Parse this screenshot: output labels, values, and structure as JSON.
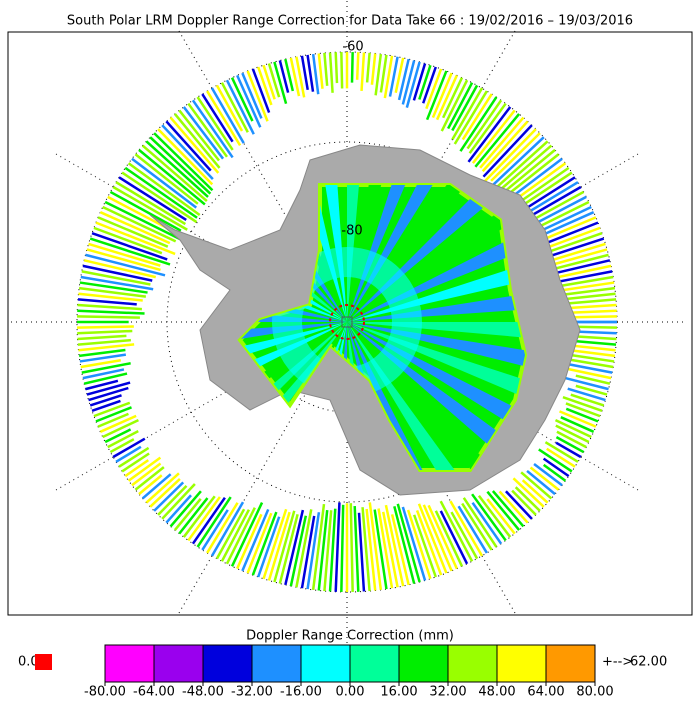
{
  "title": "South Polar LRM Doppler Range Correction for Data Take 66 : 19/02/2016 – 19/03/2016",
  "map": {
    "lat_labels": [
      "-60",
      "-80"
    ]
  },
  "colorbar": {
    "title": "Doppler Range Correction (mm)",
    "colors": [
      "#ff00ff",
      "#9a00ee",
      "#0000dd",
      "#1e90ff",
      "#00ffff",
      "#00ff99",
      "#00ee00",
      "#99ff00",
      "#ffff00",
      "#ff9900"
    ],
    "tick_labels": [
      "-80.00",
      "-64.00",
      "-48.00",
      "-32.00",
      "-16.00",
      "0.00",
      "16.00",
      "32.00",
      "48.00",
      "64.00",
      "80.00"
    ],
    "min_label": "0.0",
    "min_color": "#ff0000",
    "max_arrow": "+-->",
    "max_label": "62.00",
    "max_color": "#ff9900"
  }
}
